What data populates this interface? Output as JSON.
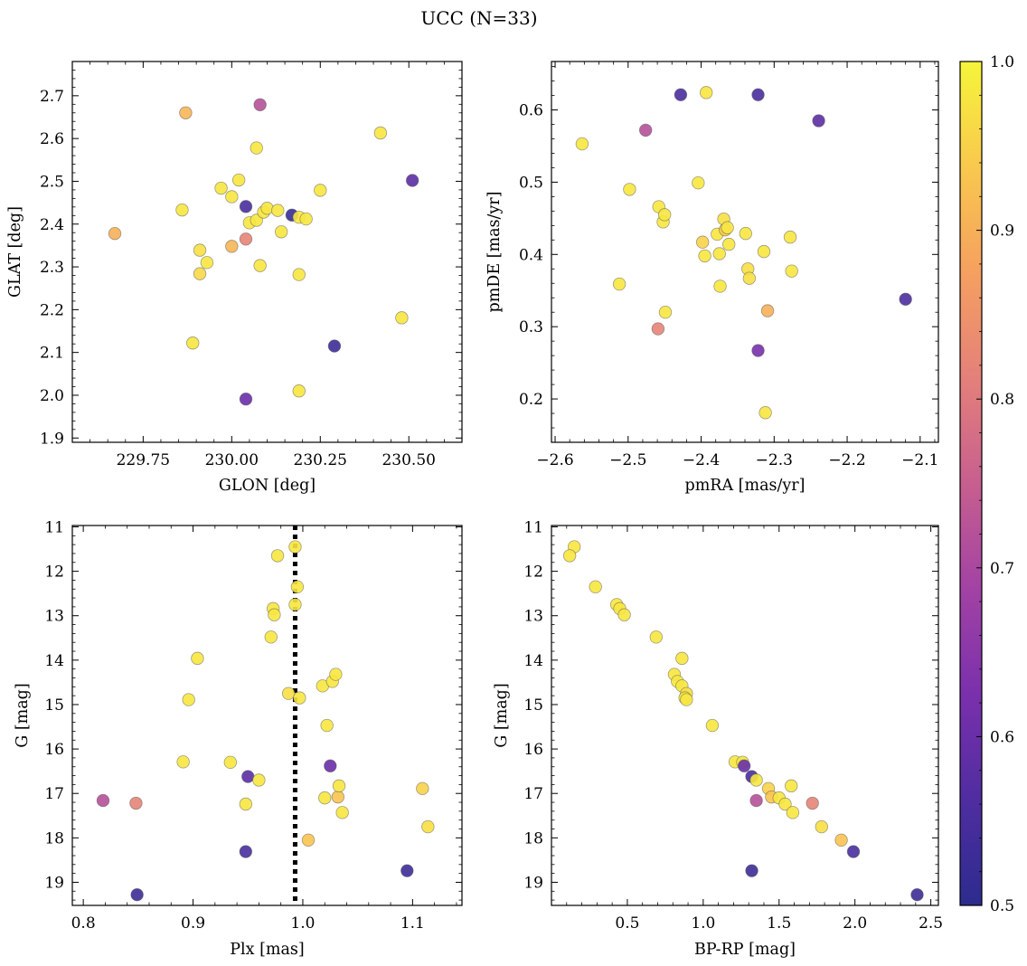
{
  "figure": {
    "suptitle": "UCC (N=33)"
  },
  "colorbar": {
    "colormap": "plasma",
    "range": [
      0.5,
      1.0
    ],
    "ticks": [
      0.5,
      0.6,
      0.7,
      0.8,
      0.9,
      1.0
    ],
    "tick_labels": [
      "0.5",
      "0.6",
      "0.7",
      "0.8",
      "0.9",
      "1.0"
    ]
  },
  "chart_data": [
    {
      "type": "scatter",
      "title": "",
      "xlabel": "GLON [deg]",
      "ylabel": "GLAT [deg]",
      "xlim": [
        229.55,
        230.65
      ],
      "ylim": [
        1.89,
        2.78
      ],
      "yinvert": false,
      "xticks": [
        229.75,
        230.0,
        230.25,
        230.5
      ],
      "xtick_labels": [
        "229.75",
        "230.00",
        "230.25",
        "230.50"
      ],
      "yticks": [
        1.9,
        2.0,
        2.1,
        2.2,
        2.3,
        2.4,
        2.5,
        2.6,
        2.7
      ],
      "ytick_labels": [
        "1.9",
        "2.0",
        "2.1",
        "2.2",
        "2.3",
        "2.4",
        "2.5",
        "2.6",
        "2.7"
      ],
      "grid": false,
      "points": [
        {
          "x": 229.67,
          "y": 2.378,
          "c": 0.9
        },
        {
          "x": 229.86,
          "y": 2.433,
          "c": 0.98
        },
        {
          "x": 229.87,
          "y": 2.66,
          "c": 0.91
        },
        {
          "x": 229.89,
          "y": 2.122,
          "c": 0.98
        },
        {
          "x": 229.91,
          "y": 2.284,
          "c": 0.96
        },
        {
          "x": 229.91,
          "y": 2.339,
          "c": 0.97
        },
        {
          "x": 229.93,
          "y": 2.31,
          "c": 0.98
        },
        {
          "x": 229.97,
          "y": 2.484,
          "c": 0.98
        },
        {
          "x": 230.0,
          "y": 2.464,
          "c": 0.98
        },
        {
          "x": 230.0,
          "y": 2.348,
          "c": 0.91
        },
        {
          "x": 230.02,
          "y": 2.503,
          "c": 0.98
        },
        {
          "x": 230.04,
          "y": 2.441,
          "c": 0.55
        },
        {
          "x": 230.04,
          "y": 2.365,
          "c": 0.82
        },
        {
          "x": 230.04,
          "y": 1.991,
          "c": 0.6
        },
        {
          "x": 230.05,
          "y": 2.403,
          "c": 0.98
        },
        {
          "x": 230.07,
          "y": 2.409,
          "c": 0.98
        },
        {
          "x": 230.07,
          "y": 2.578,
          "c": 0.98
        },
        {
          "x": 230.08,
          "y": 2.679,
          "c": 0.72
        },
        {
          "x": 230.08,
          "y": 2.303,
          "c": 0.98
        },
        {
          "x": 230.09,
          "y": 2.428,
          "c": 0.98
        },
        {
          "x": 230.1,
          "y": 2.437,
          "c": 0.98
        },
        {
          "x": 230.13,
          "y": 2.432,
          "c": 0.98
        },
        {
          "x": 230.14,
          "y": 2.382,
          "c": 0.98
        },
        {
          "x": 230.17,
          "y": 2.421,
          "c": 0.52
        },
        {
          "x": 230.19,
          "y": 2.416,
          "c": 0.98
        },
        {
          "x": 230.19,
          "y": 2.282,
          "c": 0.98
        },
        {
          "x": 230.19,
          "y": 2.01,
          "c": 0.98
        },
        {
          "x": 230.21,
          "y": 2.412,
          "c": 0.98
        },
        {
          "x": 230.25,
          "y": 2.479,
          "c": 0.98
        },
        {
          "x": 230.29,
          "y": 2.115,
          "c": 0.53
        },
        {
          "x": 230.42,
          "y": 2.613,
          "c": 0.98
        },
        {
          "x": 230.48,
          "y": 2.181,
          "c": 0.98
        },
        {
          "x": 230.51,
          "y": 2.502,
          "c": 0.58
        }
      ]
    },
    {
      "type": "scatter",
      "title": "",
      "xlabel": "pmRA [mas/yr]",
      "ylabel": "pmDE [mas/yr]",
      "xlim": [
        -2.605,
        -2.075
      ],
      "ylim": [
        0.14,
        0.667
      ],
      "yinvert": false,
      "xticks": [
        -2.6,
        -2.5,
        -2.4,
        -2.3,
        -2.2,
        -2.1
      ],
      "xtick_labels": [
        "−2.6",
        "−2.5",
        "−2.4",
        "−2.3",
        "−2.2",
        "−2.1"
      ],
      "yticks": [
        0.2,
        0.3,
        0.4,
        0.5,
        0.6
      ],
      "ytick_labels": [
        "0.2",
        "0.3",
        "0.4",
        "0.5",
        "0.6"
      ],
      "grid": false,
      "points": [
        {
          "x": -2.563,
          "y": 0.553,
          "c": 0.98
        },
        {
          "x": -2.512,
          "y": 0.359,
          "c": 0.98
        },
        {
          "x": -2.498,
          "y": 0.49,
          "c": 0.98
        },
        {
          "x": -2.476,
          "y": 0.572,
          "c": 0.72
        },
        {
          "x": -2.459,
          "y": 0.297,
          "c": 0.82
        },
        {
          "x": -2.458,
          "y": 0.466,
          "c": 0.98
        },
        {
          "x": -2.452,
          "y": 0.445,
          "c": 0.98
        },
        {
          "x": -2.45,
          "y": 0.455,
          "c": 0.98
        },
        {
          "x": -2.449,
          "y": 0.32,
          "c": 0.98
        },
        {
          "x": -2.428,
          "y": 0.621,
          "c": 0.55
        },
        {
          "x": -2.404,
          "y": 0.499,
          "c": 0.98
        },
        {
          "x": -2.398,
          "y": 0.417,
          "c": 0.95
        },
        {
          "x": -2.395,
          "y": 0.398,
          "c": 0.98
        },
        {
          "x": -2.393,
          "y": 0.624,
          "c": 0.98
        },
        {
          "x": -2.378,
          "y": 0.428,
          "c": 0.98
        },
        {
          "x": -2.375,
          "y": 0.401,
          "c": 0.98
        },
        {
          "x": -2.374,
          "y": 0.356,
          "c": 0.98
        },
        {
          "x": -2.369,
          "y": 0.449,
          "c": 0.97
        },
        {
          "x": -2.367,
          "y": 0.434,
          "c": 0.94
        },
        {
          "x": -2.364,
          "y": 0.437,
          "c": 0.98
        },
        {
          "x": -2.362,
          "y": 0.414,
          "c": 0.98
        },
        {
          "x": -2.339,
          "y": 0.429,
          "c": 0.98
        },
        {
          "x": -2.336,
          "y": 0.38,
          "c": 0.97
        },
        {
          "x": -2.334,
          "y": 0.367,
          "c": 0.97
        },
        {
          "x": -2.322,
          "y": 0.621,
          "c": 0.55
        },
        {
          "x": -2.322,
          "y": 0.267,
          "c": 0.62
        },
        {
          "x": -2.314,
          "y": 0.404,
          "c": 0.98
        },
        {
          "x": -2.312,
          "y": 0.181,
          "c": 0.98
        },
        {
          "x": -2.309,
          "y": 0.322,
          "c": 0.9
        },
        {
          "x": -2.278,
          "y": 0.424,
          "c": 0.98
        },
        {
          "x": -2.276,
          "y": 0.377,
          "c": 0.98
        },
        {
          "x": -2.239,
          "y": 0.585,
          "c": 0.58
        },
        {
          "x": -2.12,
          "y": 0.338,
          "c": 0.56
        }
      ]
    },
    {
      "type": "scatter",
      "title": "",
      "xlabel": "Plx [mas]",
      "ylabel": "G [mag]",
      "xlim": [
        0.79,
        1.145
      ],
      "ylim": [
        19.52,
        10.97
      ],
      "yinvert": true,
      "xticks": [
        0.8,
        0.9,
        1.0,
        1.1
      ],
      "xtick_labels": [
        "0.8",
        "0.9",
        "1.0",
        "1.1"
      ],
      "yticks": [
        11,
        12,
        13,
        14,
        15,
        16,
        17,
        18,
        19
      ],
      "ytick_labels": [
        "11",
        "12",
        "13",
        "14",
        "15",
        "16",
        "17",
        "18",
        "19"
      ],
      "grid": false,
      "reference_line": {
        "x": 0.993,
        "style": "dotted",
        "color": "#000000"
      },
      "points": [
        {
          "x": 0.818,
          "y": 17.16,
          "c": 0.72
        },
        {
          "x": 0.848,
          "y": 17.22,
          "c": 0.82
        },
        {
          "x": 0.849,
          "y": 19.28,
          "c": 0.53
        },
        {
          "x": 0.891,
          "y": 16.29,
          "c": 0.98
        },
        {
          "x": 0.896,
          "y": 14.89,
          "c": 0.98
        },
        {
          "x": 0.904,
          "y": 13.96,
          "c": 0.98
        },
        {
          "x": 0.934,
          "y": 16.3,
          "c": 0.98
        },
        {
          "x": 0.948,
          "y": 17.24,
          "c": 0.98
        },
        {
          "x": 0.948,
          "y": 18.31,
          "c": 0.55
        },
        {
          "x": 0.95,
          "y": 16.62,
          "c": 0.58
        },
        {
          "x": 0.96,
          "y": 16.7,
          "c": 0.98
        },
        {
          "x": 0.971,
          "y": 13.48,
          "c": 0.98
        },
        {
          "x": 0.973,
          "y": 12.84,
          "c": 0.98
        },
        {
          "x": 0.974,
          "y": 12.98,
          "c": 0.98
        },
        {
          "x": 0.977,
          "y": 11.65,
          "c": 0.98
        },
        {
          "x": 0.987,
          "y": 14.75,
          "c": 0.97
        },
        {
          "x": 0.993,
          "y": 11.45,
          "c": 0.98
        },
        {
          "x": 0.993,
          "y": 12.75,
          "c": 0.98
        },
        {
          "x": 0.995,
          "y": 12.35,
          "c": 0.98
        },
        {
          "x": 0.997,
          "y": 14.85,
          "c": 0.98
        },
        {
          "x": 1.005,
          "y": 18.05,
          "c": 0.93
        },
        {
          "x": 1.018,
          "y": 14.58,
          "c": 0.98
        },
        {
          "x": 1.02,
          "y": 17.1,
          "c": 0.98
        },
        {
          "x": 1.022,
          "y": 15.47,
          "c": 0.98
        },
        {
          "x": 1.025,
          "y": 16.38,
          "c": 0.6
        },
        {
          "x": 1.027,
          "y": 14.48,
          "c": 0.98
        },
        {
          "x": 1.03,
          "y": 14.32,
          "c": 0.98
        },
        {
          "x": 1.032,
          "y": 17.08,
          "c": 0.93
        },
        {
          "x": 1.033,
          "y": 16.83,
          "c": 0.98
        },
        {
          "x": 1.036,
          "y": 17.43,
          "c": 0.98
        },
        {
          "x": 1.095,
          "y": 18.74,
          "c": 0.53
        },
        {
          "x": 1.109,
          "y": 16.89,
          "c": 0.95
        },
        {
          "x": 1.114,
          "y": 17.75,
          "c": 0.97
        }
      ]
    },
    {
      "type": "scatter",
      "title": "",
      "xlabel": "BP-RP [mag]",
      "ylabel": "G [mag]",
      "xlim": [
        0.0,
        2.55
      ],
      "ylim": [
        19.52,
        10.97
      ],
      "yinvert": true,
      "xticks": [
        0.5,
        1.0,
        1.5,
        2.0,
        2.5
      ],
      "xtick_labels": [
        "0.5",
        "1.0",
        "1.5",
        "2.0",
        "2.5"
      ],
      "yticks": [
        11,
        12,
        13,
        14,
        15,
        16,
        17,
        18,
        19
      ],
      "ytick_labels": [
        "11",
        "12",
        "13",
        "14",
        "15",
        "16",
        "17",
        "18",
        "19"
      ],
      "grid": false,
      "points": [
        {
          "x": 0.15,
          "y": 11.45,
          "c": 0.98
        },
        {
          "x": 0.12,
          "y": 11.65,
          "c": 0.98
        },
        {
          "x": 0.29,
          "y": 12.35,
          "c": 0.98
        },
        {
          "x": 0.43,
          "y": 12.75,
          "c": 0.98
        },
        {
          "x": 0.45,
          "y": 12.84,
          "c": 0.98
        },
        {
          "x": 0.48,
          "y": 12.98,
          "c": 0.98
        },
        {
          "x": 0.69,
          "y": 13.48,
          "c": 0.98
        },
        {
          "x": 0.86,
          "y": 13.96,
          "c": 0.98
        },
        {
          "x": 0.81,
          "y": 14.32,
          "c": 0.98
        },
        {
          "x": 0.83,
          "y": 14.48,
          "c": 0.98
        },
        {
          "x": 0.86,
          "y": 14.58,
          "c": 0.98
        },
        {
          "x": 0.89,
          "y": 14.75,
          "c": 0.97
        },
        {
          "x": 0.88,
          "y": 14.85,
          "c": 0.98
        },
        {
          "x": 0.89,
          "y": 14.89,
          "c": 0.98
        },
        {
          "x": 1.06,
          "y": 15.47,
          "c": 0.98
        },
        {
          "x": 1.21,
          "y": 16.29,
          "c": 0.98
        },
        {
          "x": 1.26,
          "y": 16.3,
          "c": 0.98
        },
        {
          "x": 1.27,
          "y": 16.38,
          "c": 0.6
        },
        {
          "x": 1.32,
          "y": 16.62,
          "c": 0.55
        },
        {
          "x": 1.35,
          "y": 16.7,
          "c": 0.98
        },
        {
          "x": 1.58,
          "y": 16.83,
          "c": 0.98
        },
        {
          "x": 1.43,
          "y": 16.89,
          "c": 0.95
        },
        {
          "x": 1.45,
          "y": 17.08,
          "c": 0.93
        },
        {
          "x": 1.5,
          "y": 17.1,
          "c": 0.98
        },
        {
          "x": 1.35,
          "y": 17.16,
          "c": 0.72
        },
        {
          "x": 1.72,
          "y": 17.22,
          "c": 0.82
        },
        {
          "x": 1.54,
          "y": 17.24,
          "c": 0.98
        },
        {
          "x": 1.59,
          "y": 17.43,
          "c": 0.98
        },
        {
          "x": 1.78,
          "y": 17.75,
          "c": 0.97
        },
        {
          "x": 1.91,
          "y": 18.05,
          "c": 0.93
        },
        {
          "x": 1.99,
          "y": 18.31,
          "c": 0.55
        },
        {
          "x": 1.32,
          "y": 18.74,
          "c": 0.53
        },
        {
          "x": 2.41,
          "y": 19.28,
          "c": 0.53
        }
      ]
    }
  ]
}
